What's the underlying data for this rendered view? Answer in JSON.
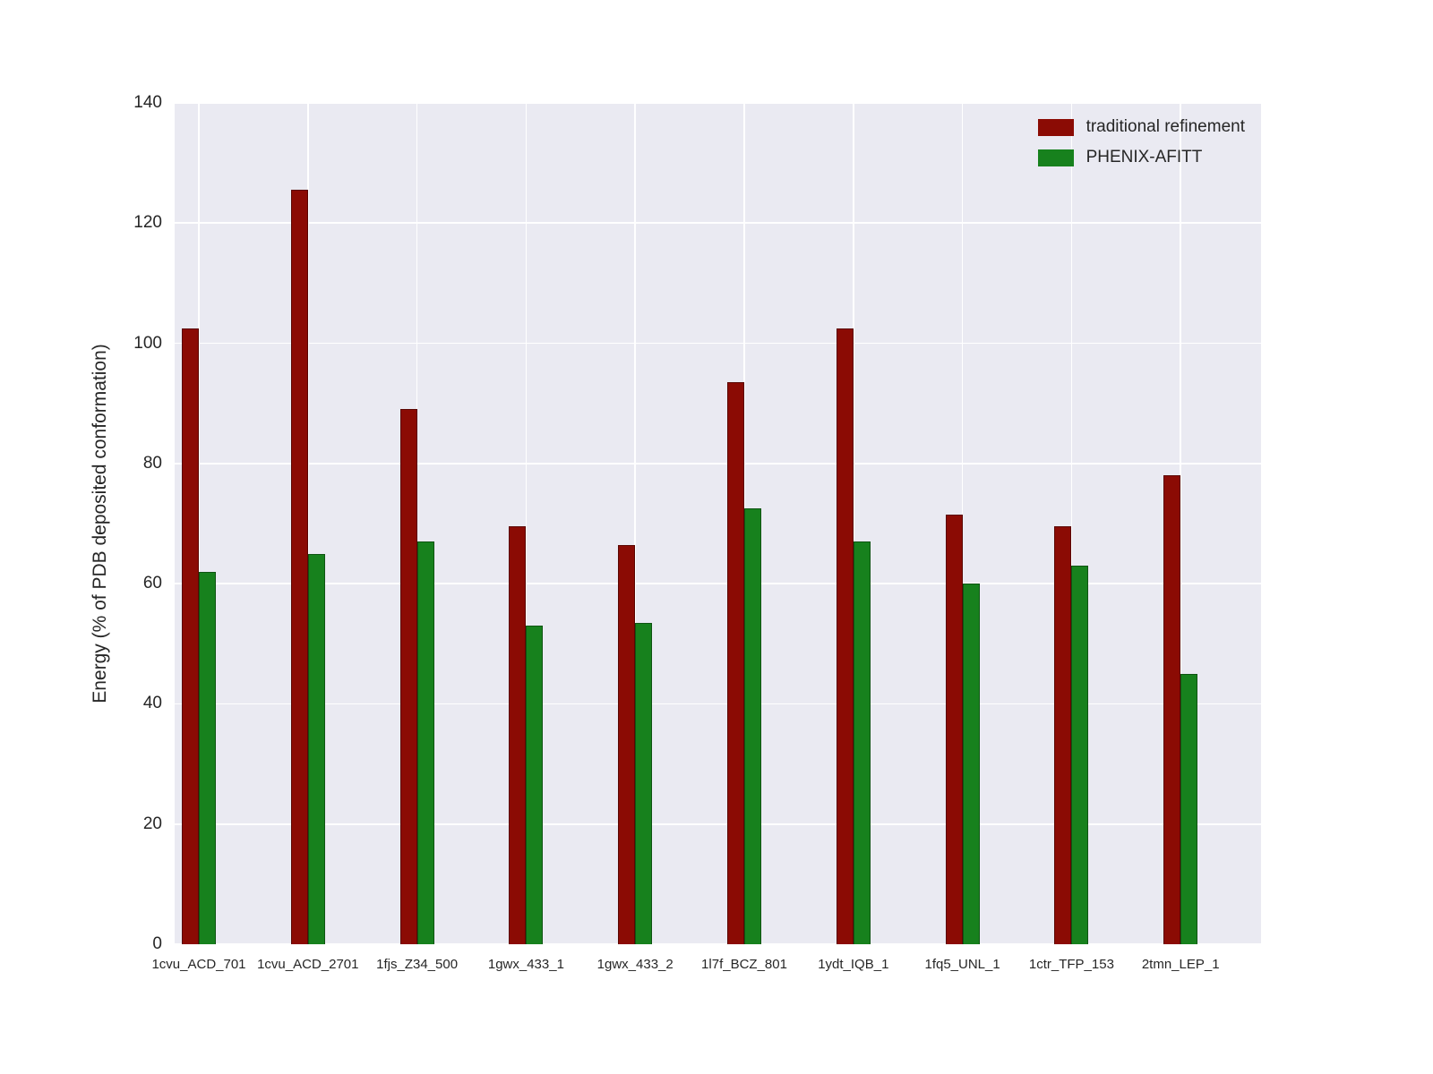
{
  "chart_data": {
    "type": "bar",
    "title": "",
    "xlabel": "",
    "ylabel": "Energy (% of PDB deposited conformation)",
    "ylim": [
      0,
      140
    ],
    "yticks": [
      0,
      20,
      40,
      60,
      80,
      100,
      120,
      140
    ],
    "grid": true,
    "plot_background": "#eaeaf2",
    "figure_background": "#ffffff",
    "legend_position": "upper right",
    "categories": [
      "1cvu_ACD_701",
      "1cvu_ACD_2701",
      "1fjs_Z34_500",
      "1gwx_433_1",
      "1gwx_433_2",
      "1l7f_BCZ_801",
      "1ydt_IQB_1",
      "1fq5_UNL_1",
      "1ctr_TFP_153",
      "2tmn_LEP_1"
    ],
    "series": [
      {
        "name": "traditional refinement",
        "color": "#8b0b04",
        "values": [
          102.5,
          125.5,
          89,
          69.5,
          66.5,
          93.5,
          102.5,
          71.5,
          69.5,
          78
        ]
      },
      {
        "name": "PHENIX-AFITT",
        "color": "#17811d",
        "values": [
          62,
          65,
          67,
          53,
          53.5,
          72.5,
          67,
          60,
          63,
          45
        ]
      }
    ]
  }
}
